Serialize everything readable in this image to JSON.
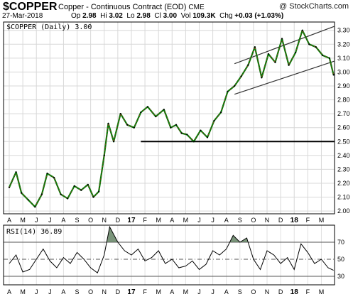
{
  "header": {
    "symbol": "$COPPER",
    "description": "Copper - Continuous Contract (EOD)",
    "exchange": "CME",
    "watermark": "@ StockCharts.com",
    "date": "27-Mar-2018",
    "quote": {
      "op_label": "Op",
      "op": "2.98",
      "hi_label": "Hi",
      "hi": "3.02",
      "lo_label": "Lo",
      "lo": "2.98",
      "cl_label": "Cl",
      "cl": "3.00",
      "vol_label": "Vol",
      "vol": "109.3K",
      "chg_label": "Chg",
      "chg": "+0.03 (+1.03%)"
    }
  },
  "price_panel": {
    "legend": "$COPPER (Daily) 3.00",
    "support_line_value": 2.5
  },
  "rsi_panel": {
    "legend": "RSI(14) 36.89"
  },
  "chart_data": [
    {
      "type": "line",
      "title": "$COPPER (Daily)",
      "ylim": [
        1.98,
        3.36
      ],
      "y_ticks": [
        2.0,
        2.1,
        2.2,
        2.3,
        2.4,
        2.5,
        2.6,
        2.7,
        2.8,
        2.9,
        3.0,
        3.1,
        3.2,
        3.3
      ],
      "y_tick_labels": [
        "2.00",
        "2.10",
        "2.20",
        "2.30",
        "2.40",
        "2.50",
        "2.60",
        "2.70",
        "2.80",
        "2.90",
        "3.00",
        "3.10",
        "3.20",
        "3.30"
      ],
      "x_tick_labels": [
        "A",
        "M",
        "J",
        "J",
        "A",
        "S",
        "O",
        "N",
        "D",
        "17",
        "F",
        "M",
        "A",
        "M",
        "J",
        "J",
        "A",
        "S",
        "O",
        "N",
        "D",
        "18",
        "F",
        "M"
      ],
      "month_index_range": [
        0,
        24
      ],
      "x": [
        0,
        0.5,
        0.9,
        1.4,
        1.9,
        2.4,
        2.8,
        3.3,
        3.8,
        4.3,
        4.8,
        5.3,
        5.8,
        6.2,
        6.6,
        7.0,
        7.3,
        7.7,
        8.2,
        8.7,
        9.2,
        9.7,
        10.2,
        10.8,
        11.4,
        11.9,
        12.3,
        12.7,
        13.1,
        13.6,
        14.1,
        14.6,
        15.1,
        15.6,
        16.1,
        16.6,
        17.1,
        17.6,
        18.1,
        18.6,
        19.1,
        19.6,
        20.1,
        20.6,
        21.1,
        21.6,
        22.1,
        22.6,
        23.1,
        23.6,
        23.9
      ],
      "series": [
        {
          "values": [
            2.17,
            2.28,
            2.13,
            2.08,
            2.03,
            2.12,
            2.27,
            2.24,
            2.12,
            2.09,
            2.18,
            2.15,
            2.19,
            2.1,
            2.14,
            2.4,
            2.63,
            2.5,
            2.7,
            2.62,
            2.6,
            2.71,
            2.75,
            2.68,
            2.73,
            2.6,
            2.62,
            2.56,
            2.55,
            2.5,
            2.58,
            2.53,
            2.65,
            2.71,
            2.86,
            2.9,
            2.97,
            3.05,
            3.18,
            2.96,
            3.13,
            3.07,
            3.24,
            3.05,
            3.14,
            3.3,
            3.2,
            3.18,
            3.12,
            3.1,
            2.98
          ]
        }
      ],
      "channel_upper": {
        "x": [
          16.6,
          24.0
        ],
        "y": [
          3.06,
          3.33
        ]
      },
      "channel_lower": {
        "x": [
          16.6,
          24.0
        ],
        "y": [
          2.84,
          3.08
        ]
      },
      "horizontal_line": {
        "x": [
          9.7,
          24.0
        ],
        "y": 2.5
      },
      "grid": true
    },
    {
      "type": "line",
      "title": "RSI(14)",
      "ylim": [
        20,
        90
      ],
      "y_ticks": [
        30,
        50,
        70
      ],
      "y_tick_labels": [
        "30",
        "50",
        "70"
      ],
      "reference_lines": [
        30,
        50,
        70
      ],
      "x": [
        0,
        0.5,
        1.0,
        1.5,
        2.0,
        2.5,
        3.0,
        3.5,
        4.0,
        4.5,
        5.0,
        5.5,
        6.0,
        6.5,
        7.0,
        7.4,
        8.0,
        8.5,
        9.0,
        9.5,
        10.0,
        10.5,
        11.0,
        11.5,
        12.0,
        12.5,
        13.0,
        13.5,
        14.0,
        14.5,
        15.0,
        15.5,
        16.0,
        16.5,
        17.0,
        17.5,
        18.0,
        18.5,
        19.0,
        19.5,
        20.0,
        20.5,
        21.0,
        21.5,
        22.0,
        22.5,
        23.0,
        23.5,
        23.9
      ],
      "series": [
        {
          "values": [
            45,
            55,
            35,
            38,
            50,
            62,
            48,
            40,
            52,
            45,
            58,
            50,
            40,
            34,
            55,
            88,
            70,
            60,
            55,
            62,
            48,
            52,
            60,
            45,
            50,
            40,
            42,
            48,
            38,
            44,
            60,
            55,
            62,
            78,
            70,
            75,
            50,
            38,
            60,
            55,
            45,
            52,
            38,
            68,
            58,
            45,
            50,
            40,
            37
          ]
        }
      ]
    }
  ]
}
